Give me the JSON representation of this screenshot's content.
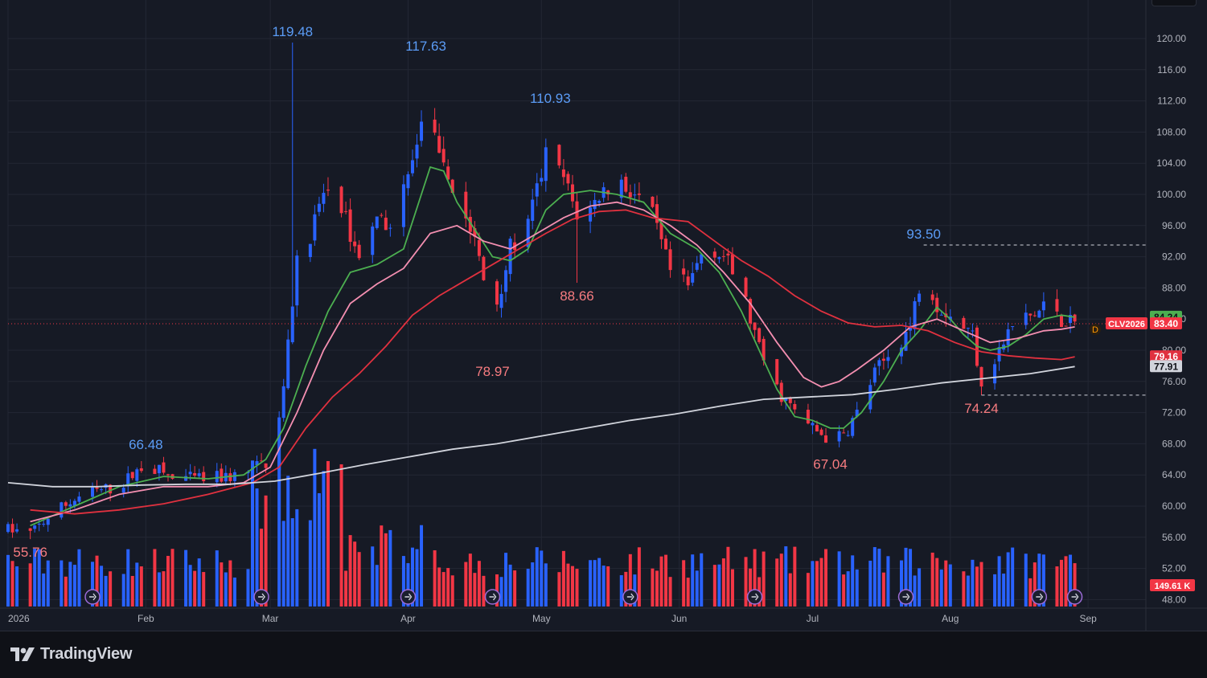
{
  "branding": {
    "name": "TradingView",
    "logo_icon": "tradingview-logo-icon"
  },
  "colors": {
    "background": "#161a25",
    "up": "#2962ff",
    "down": "#f23645",
    "ma_green": "#4caf50",
    "ma_pink": "#f48fb1",
    "ma_red": "#e0313f",
    "ma_gray": "#d1d4dc",
    "axis_text": "#b2b5be",
    "label_up": "#5b9cf6",
    "label_down": "#f77c80"
  },
  "chart_data": {
    "type": "candlestick",
    "symbol": "CLV2026",
    "interval_badge": "D",
    "ylim": [
      46,
      122
    ],
    "y_ticks": [
      "48.00",
      "52.00",
      "56.00",
      "60.00",
      "64.00",
      "68.00",
      "72.00",
      "76.00",
      "80.00",
      "84.00",
      "88.00",
      "92.00",
      "96.00",
      "100.00",
      "104.00",
      "108.00",
      "112.00",
      "116.00",
      "120.00"
    ],
    "x_ticks": [
      {
        "label": "2026",
        "day": -5
      },
      {
        "label": "Feb",
        "day": 26
      },
      {
        "label": "Mar",
        "day": 54
      },
      {
        "label": "Apr",
        "day": 85
      },
      {
        "label": "May",
        "day": 115
      },
      {
        "label": "Jun",
        "day": 146
      },
      {
        "label": "Jul",
        "day": 176
      },
      {
        "label": "Aug",
        "day": 207
      },
      {
        "label": "Sep",
        "day": 238
      }
    ],
    "x_range_days": [
      -5,
      251
    ],
    "highs_lows": [
      {
        "text": "119.48",
        "kind": "high",
        "day": 59,
        "price": 119.48
      },
      {
        "text": "117.63",
        "kind": "high",
        "day": 89,
        "price": 117.63
      },
      {
        "text": "110.93",
        "kind": "high",
        "day": 117,
        "price": 110.93
      },
      {
        "text": "66.48",
        "kind": "high",
        "day": 26,
        "price": 66.48
      },
      {
        "text": "93.50",
        "kind": "high",
        "day": 201,
        "price": 93.5
      },
      {
        "text": "55.76",
        "kind": "low",
        "day": 0,
        "price": 55.76
      },
      {
        "text": "78.97",
        "kind": "low",
        "day": 104,
        "price": 78.97
      },
      {
        "text": "88.66",
        "kind": "low",
        "day": 123,
        "price": 88.66
      },
      {
        "text": "67.04",
        "kind": "low",
        "day": 180,
        "price": 67.04
      },
      {
        "text": "74.24",
        "kind": "low",
        "day": 214,
        "price": 74.24
      }
    ],
    "price_labels": [
      {
        "text": "84.24",
        "price": 84.24,
        "color": "#4caf50",
        "text_color": "#0f1117"
      },
      {
        "text": "83.40",
        "price": 83.4,
        "color": "#f23645",
        "text_color": "#ffffff"
      },
      {
        "text": "79.16",
        "price": 79.16,
        "color": "#e0313f",
        "text_color": "#ffffff"
      },
      {
        "text": "77.91",
        "price": 77.91,
        "color": "#d1d4dc",
        "text_color": "#0f1117"
      }
    ],
    "last_price": 83.4,
    "volume_label": "149.61 K",
    "resistance_level": 93.5,
    "support_level": 74.24,
    "ma_series": [
      {
        "color": "#4caf50",
        "points": [
          [
            0,
            57.5
          ],
          [
            10,
            60
          ],
          [
            20,
            62.5
          ],
          [
            30,
            63.8
          ],
          [
            40,
            63.5
          ],
          [
            48,
            64
          ],
          [
            53,
            66
          ],
          [
            57,
            70
          ],
          [
            62,
            78
          ],
          [
            67,
            85
          ],
          [
            72,
            90
          ],
          [
            78,
            91
          ],
          [
            84,
            93
          ],
          [
            88,
            100
          ],
          [
            90,
            103.5
          ],
          [
            93,
            103
          ],
          [
            96,
            99
          ],
          [
            100,
            95.5
          ],
          [
            104,
            92
          ],
          [
            108,
            91.5
          ],
          [
            112,
            93
          ],
          [
            116,
            98
          ],
          [
            120,
            100
          ],
          [
            126,
            100.5
          ],
          [
            132,
            100
          ],
          [
            138,
            99
          ],
          [
            144,
            95
          ],
          [
            150,
            93
          ],
          [
            155,
            90
          ],
          [
            160,
            85
          ],
          [
            164,
            80
          ],
          [
            168,
            75
          ],
          [
            172,
            71.5
          ],
          [
            176,
            71
          ],
          [
            180,
            70
          ],
          [
            183,
            70
          ],
          [
            187,
            72
          ],
          [
            192,
            76
          ],
          [
            196,
            80
          ],
          [
            200,
            82.5
          ],
          [
            204,
            85.5
          ],
          [
            207,
            84
          ],
          [
            210,
            82
          ],
          [
            213,
            80.5
          ],
          [
            216,
            80
          ],
          [
            220,
            80.5
          ],
          [
            224,
            82
          ],
          [
            228,
            84
          ],
          [
            232,
            84.5
          ],
          [
            235,
            84.24
          ]
        ]
      },
      {
        "color": "#f48fb1",
        "points": [
          [
            0,
            58
          ],
          [
            10,
            59.5
          ],
          [
            20,
            61.5
          ],
          [
            30,
            62.5
          ],
          [
            40,
            62.5
          ],
          [
            48,
            63
          ],
          [
            54,
            65
          ],
          [
            60,
            72
          ],
          [
            66,
            80
          ],
          [
            72,
            86
          ],
          [
            78,
            88.5
          ],
          [
            84,
            90.5
          ],
          [
            90,
            95
          ],
          [
            96,
            96
          ],
          [
            102,
            94
          ],
          [
            108,
            93
          ],
          [
            114,
            95
          ],
          [
            120,
            97
          ],
          [
            126,
            98.5
          ],
          [
            132,
            99
          ],
          [
            138,
            98
          ],
          [
            144,
            96
          ],
          [
            150,
            93.5
          ],
          [
            156,
            90
          ],
          [
            162,
            86
          ],
          [
            168,
            81
          ],
          [
            174,
            76.5
          ],
          [
            178,
            75.3
          ],
          [
            182,
            76
          ],
          [
            186,
            77.5
          ],
          [
            192,
            80
          ],
          [
            198,
            83
          ],
          [
            204,
            84
          ],
          [
            210,
            82.5
          ],
          [
            216,
            81
          ],
          [
            222,
            81.5
          ],
          [
            228,
            82.5
          ],
          [
            232,
            82.7
          ],
          [
            235,
            83
          ]
        ]
      },
      {
        "color": "#e0313f",
        "points": [
          [
            0,
            59.5
          ],
          [
            10,
            59
          ],
          [
            20,
            59.5
          ],
          [
            30,
            60.3
          ],
          [
            40,
            61.5
          ],
          [
            50,
            63
          ],
          [
            56,
            65
          ],
          [
            62,
            70
          ],
          [
            68,
            74
          ],
          [
            74,
            77
          ],
          [
            80,
            80.5
          ],
          [
            86,
            84.5
          ],
          [
            92,
            87
          ],
          [
            98,
            89
          ],
          [
            104,
            91
          ],
          [
            110,
            93
          ],
          [
            116,
            95
          ],
          [
            122,
            96.8
          ],
          [
            128,
            97.8
          ],
          [
            134,
            98
          ],
          [
            140,
            97
          ],
          [
            148,
            96.5
          ],
          [
            154,
            94
          ],
          [
            160,
            91.5
          ],
          [
            166,
            89.5
          ],
          [
            172,
            87
          ],
          [
            178,
            85
          ],
          [
            184,
            83.5
          ],
          [
            190,
            83
          ],
          [
            196,
            83.2
          ],
          [
            202,
            82.5
          ],
          [
            208,
            81
          ],
          [
            214,
            79.8
          ],
          [
            220,
            79.3
          ],
          [
            226,
            79
          ],
          [
            232,
            78.8
          ],
          [
            235,
            79.16
          ]
        ]
      },
      {
        "color": "#d1d4dc",
        "points": [
          [
            -5,
            63
          ],
          [
            5,
            62.5
          ],
          [
            15,
            62.5
          ],
          [
            25,
            62.7
          ],
          [
            35,
            62.8
          ],
          [
            45,
            62.8
          ],
          [
            55,
            63.2
          ],
          [
            65,
            64.2
          ],
          [
            75,
            65.3
          ],
          [
            85,
            66.3
          ],
          [
            95,
            67.3
          ],
          [
            105,
            68
          ],
          [
            115,
            69
          ],
          [
            125,
            70
          ],
          [
            135,
            71
          ],
          [
            145,
            71.8
          ],
          [
            155,
            72.8
          ],
          [
            165,
            73.7
          ],
          [
            175,
            74
          ],
          [
            185,
            74.3
          ],
          [
            195,
            75
          ],
          [
            205,
            75.8
          ],
          [
            215,
            76.4
          ],
          [
            225,
            77
          ],
          [
            235,
            77.91
          ]
        ]
      }
    ]
  }
}
